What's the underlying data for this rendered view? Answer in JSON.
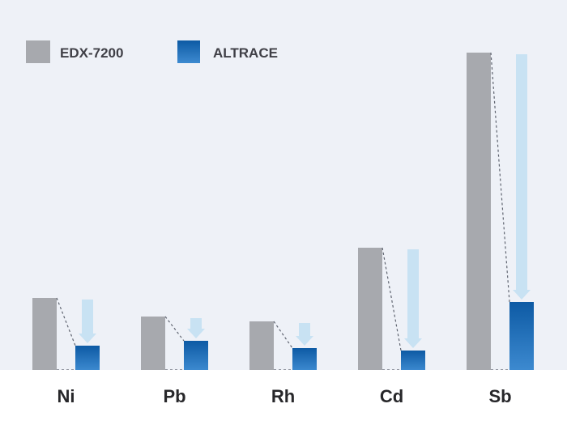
{
  "chart_data": {
    "type": "bar",
    "title": "",
    "xlabel": "",
    "ylabel": "",
    "categories": [
      "Ni",
      "Pb",
      "Rh",
      "Cd",
      "Sb"
    ],
    "series": [
      {
        "name": "EDX-7200",
        "color": "#a7a9ae",
        "values": [
          90,
          67,
          61,
          152,
          393
        ]
      },
      {
        "name": "ALTRACE",
        "color": "#1560a8",
        "values": [
          31,
          37,
          28,
          25,
          85
        ]
      }
    ],
    "ylim": [
      0,
      420
    ],
    "grid": false,
    "legend": "top-left",
    "annotations": "dashed connector lines and light-blue reduction arrows from EDX-7200 to ALTRACE",
    "colors": {
      "background": "#eef1f7",
      "arrow": "#c5e0f2",
      "axis": "#ffffff",
      "dashed": "#5f6470"
    }
  }
}
